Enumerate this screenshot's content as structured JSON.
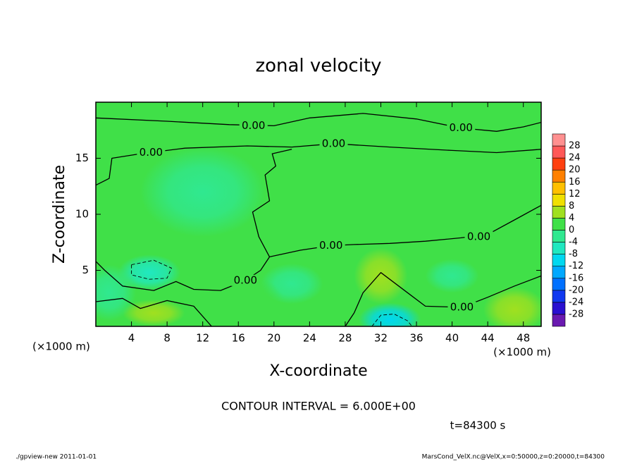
{
  "chart_data": {
    "type": "contour",
    "title": "zonal velocity",
    "xlabel": "X-coordinate",
    "ylabel": "Z-coordinate",
    "x_unit_labels": [
      "(×1000 m)",
      "(×1000 m)"
    ],
    "xlim": [
      0,
      50
    ],
    "ylim": [
      0,
      20
    ],
    "xticks": [
      4,
      8,
      12,
      16,
      20,
      24,
      28,
      32,
      36,
      40,
      44,
      48
    ],
    "yticks": [
      5,
      10,
      15
    ],
    "field": {
      "base": 0.5,
      "blobs": [
        {
          "x": 6,
          "z": 4.8,
          "rx": 3.5,
          "rz": 1.6,
          "value": -7
        },
        {
          "x": 6.5,
          "z": 1.2,
          "rx": 3.5,
          "rz": 1.2,
          "value": 6
        },
        {
          "x": 33,
          "z": 0.6,
          "rx": 3.5,
          "rz": 1.5,
          "value": -9
        },
        {
          "x": 32,
          "z": 4.5,
          "rx": 3,
          "rz": 2.5,
          "value": 5
        },
        {
          "x": 1.5,
          "z": 3,
          "rx": 3,
          "rz": 2.5,
          "value": -3
        },
        {
          "x": 22,
          "z": 3.8,
          "rx": 3.5,
          "rz": 1.8,
          "value": -3
        },
        {
          "x": 12,
          "z": 12,
          "rx": 7,
          "rz": 4,
          "value": -2
        },
        {
          "x": 47,
          "z": 1.5,
          "rx": 3.5,
          "rz": 2,
          "value": 4
        },
        {
          "x": 17,
          "z": 2.5,
          "rx": 4,
          "rz": 2,
          "value": 3
        },
        {
          "x": 40,
          "z": 4.5,
          "rx": 3,
          "rz": 1.5,
          "value": -3
        }
      ]
    },
    "contours": [
      {
        "level": 0,
        "points": [
          [
            0,
            18.6
          ],
          [
            8,
            18.3
          ],
          [
            15,
            18.0
          ],
          [
            20,
            17.9
          ],
          [
            24,
            18.6
          ],
          [
            30,
            19.0
          ],
          [
            36,
            18.5
          ],
          [
            41,
            17.7
          ],
          [
            45,
            17.4
          ],
          [
            48,
            17.8
          ],
          [
            50,
            18.2
          ]
        ]
      },
      {
        "level": 0,
        "points": [
          [
            0,
            12.6
          ],
          [
            1.5,
            13.2
          ],
          [
            1.8,
            15.0
          ],
          [
            5,
            15.4
          ],
          [
            10,
            15.9
          ],
          [
            17,
            16.1
          ],
          [
            22,
            16.0
          ],
          [
            26.7,
            16.3
          ],
          [
            33,
            16.0
          ],
          [
            40,
            15.7
          ],
          [
            45,
            15.5
          ],
          [
            50,
            15.8
          ]
        ]
      },
      {
        "level": 0,
        "points": [
          [
            50,
            10.8
          ],
          [
            47,
            9.5
          ],
          [
            44,
            8.2
          ],
          [
            41,
            7.9
          ],
          [
            37,
            7.6
          ],
          [
            33,
            7.4
          ],
          [
            29,
            7.3
          ],
          [
            26.4,
            7.2
          ],
          [
            23,
            6.8
          ],
          [
            19.5,
            6.2
          ],
          [
            18.5,
            5.0
          ],
          [
            16.8,
            4.1
          ],
          [
            14,
            3.2
          ],
          [
            11,
            3.3
          ],
          [
            9,
            4.0
          ],
          [
            6.5,
            3.2
          ],
          [
            3,
            3.6
          ],
          [
            1,
            5.0
          ],
          [
            0,
            5.8
          ]
        ]
      },
      {
        "level": 0,
        "points": [
          [
            19.5,
            6.2
          ],
          [
            18.3,
            8.0
          ],
          [
            17.6,
            10.2
          ],
          [
            19.5,
            11.2
          ],
          [
            19.0,
            13.5
          ],
          [
            20.2,
            14.3
          ],
          [
            19.8,
            15.4
          ],
          [
            22,
            15.8
          ]
        ]
      },
      {
        "level": 0,
        "points": [
          [
            50,
            4.5
          ],
          [
            47,
            3.6
          ],
          [
            44,
            2.6
          ],
          [
            41.1,
            1.7
          ],
          [
            37,
            1.8
          ],
          [
            35,
            3.0
          ],
          [
            32,
            4.8
          ],
          [
            30,
            3.0
          ],
          [
            29,
            1.2
          ],
          [
            28,
            0
          ]
        ]
      },
      {
        "level": 0,
        "points": [
          [
            0,
            2.2
          ],
          [
            3,
            2.5
          ],
          [
            5,
            1.6
          ],
          [
            8,
            2.3
          ],
          [
            11,
            1.8
          ],
          [
            13,
            0
          ]
        ]
      },
      {
        "level": -6,
        "points": [
          [
            4,
            5.5
          ],
          [
            6.5,
            5.9
          ],
          [
            8.5,
            5.2
          ],
          [
            8,
            4.3
          ],
          [
            6,
            4.2
          ],
          [
            4,
            4.6
          ],
          [
            4,
            5.5
          ]
        ]
      },
      {
        "level": -6,
        "points": [
          [
            31,
            0
          ],
          [
            32,
            1.0
          ],
          [
            33.5,
            1.1
          ],
          [
            35,
            0.5
          ],
          [
            35.5,
            0
          ]
        ]
      }
    ],
    "contour_labels": [
      {
        "text": "0.00",
        "x": 17.7,
        "z": 17.9
      },
      {
        "text": "0.00",
        "x": 41.0,
        "z": 17.7
      },
      {
        "text": "0.00",
        "x": 26.7,
        "z": 16.3
      },
      {
        "text": "0.00",
        "x": 6.2,
        "z": 15.5
      },
      {
        "text": "0.00",
        "x": 43.0,
        "z": 8.0
      },
      {
        "text": "0.00",
        "x": 26.4,
        "z": 7.2
      },
      {
        "text": "0.00",
        "x": 16.8,
        "z": 4.1
      },
      {
        "text": "0.00",
        "x": 41.1,
        "z": 1.7
      }
    ],
    "colorbar": {
      "levels": [
        -28,
        -24,
        -20,
        -16,
        -12,
        -8,
        -4,
        0,
        4,
        8,
        12,
        16,
        20,
        24,
        28
      ],
      "colors": [
        "#6a1ab0",
        "#2a10d0",
        "#1038f0",
        "#0070ff",
        "#00a8ff",
        "#00d8f0",
        "#20e8c0",
        "#30e890",
        "#40e048",
        "#a0e020",
        "#f0e000",
        "#ffc000",
        "#ff8000",
        "#ff4010",
        "#ff5858",
        "#ff9090"
      ]
    },
    "contour_interval": "CONTOUR INTERVAL = 6.000E+00",
    "time_label": "t=84300 s"
  },
  "footer": {
    "left": "./gpview-new  2011-01-01",
    "right": "MarsCond_VelX.nc@VelX,x=0:50000,z=0:20000,t=84300"
  }
}
